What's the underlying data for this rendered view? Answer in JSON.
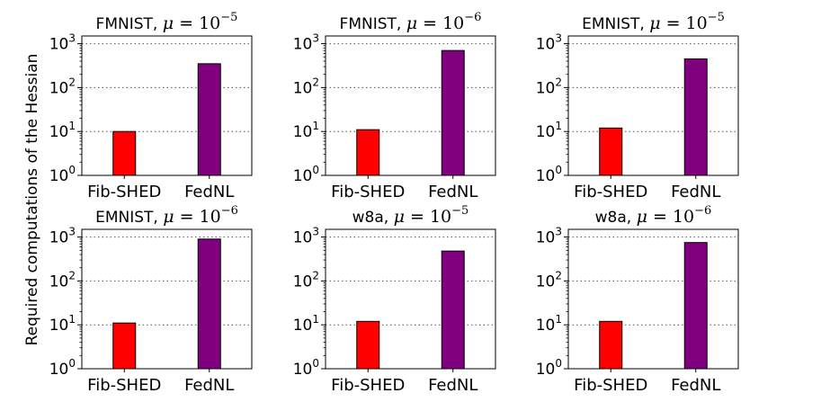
{
  "figure": {
    "ylabel": "Required computations of the Hessian"
  },
  "chart_data": [
    {
      "type": "bar",
      "title": "FMNIST, μ = 10^-5",
      "title_prefix": "FMNIST,",
      "mu_symbol": "μ",
      "mu_eq": "= 10",
      "exponent": "−5",
      "categories": [
        "Fib-SHED",
        "FedNL"
      ],
      "values": [
        10,
        350
      ],
      "colors": [
        "#ff0000",
        "#800080"
      ],
      "yscale": "log",
      "ylim": [
        1,
        1500
      ],
      "yticks": [
        {
          "base": "10",
          "exp": "0"
        },
        {
          "base": "10",
          "exp": "1"
        },
        {
          "base": "10",
          "exp": "2"
        },
        {
          "base": "10",
          "exp": "3"
        }
      ],
      "grid": "y-dotted"
    },
    {
      "type": "bar",
      "title": "FMNIST, μ = 10^-6",
      "title_prefix": "FMNIST,",
      "mu_symbol": "μ",
      "mu_eq": "= 10",
      "exponent": "−6",
      "categories": [
        "Fib-SHED",
        "FedNL"
      ],
      "values": [
        11,
        700
      ],
      "colors": [
        "#ff0000",
        "#800080"
      ],
      "yscale": "log",
      "ylim": [
        1,
        1500
      ],
      "yticks": [
        {
          "base": "10",
          "exp": "0"
        },
        {
          "base": "10",
          "exp": "1"
        },
        {
          "base": "10",
          "exp": "2"
        },
        {
          "base": "10",
          "exp": "3"
        }
      ],
      "grid": "y-dotted"
    },
    {
      "type": "bar",
      "title": "EMNIST, μ = 10^-5",
      "title_prefix": "EMNIST,",
      "mu_symbol": "μ",
      "mu_eq": "= 10",
      "exponent": "−5",
      "categories": [
        "Fib-SHED",
        "FedNL"
      ],
      "values": [
        12,
        450
      ],
      "colors": [
        "#ff0000",
        "#800080"
      ],
      "yscale": "log",
      "ylim": [
        1,
        1500
      ],
      "yticks": [
        {
          "base": "10",
          "exp": "0"
        },
        {
          "base": "10",
          "exp": "1"
        },
        {
          "base": "10",
          "exp": "2"
        },
        {
          "base": "10",
          "exp": "3"
        }
      ],
      "grid": "y-dotted"
    },
    {
      "type": "bar",
      "title": "EMNIST, μ = 10^-6",
      "title_prefix": "EMNIST,",
      "mu_symbol": "μ",
      "mu_eq": "= 10",
      "exponent": "−6",
      "categories": [
        "Fib-SHED",
        "FedNL"
      ],
      "values": [
        11,
        900
      ],
      "colors": [
        "#ff0000",
        "#800080"
      ],
      "yscale": "log",
      "ylim": [
        1,
        1500
      ],
      "yticks": [
        {
          "base": "10",
          "exp": "0"
        },
        {
          "base": "10",
          "exp": "1"
        },
        {
          "base": "10",
          "exp": "2"
        },
        {
          "base": "10",
          "exp": "3"
        }
      ],
      "grid": "y-dotted"
    },
    {
      "type": "bar",
      "title": "w8a, μ = 10^-5",
      "title_prefix": "w8a,",
      "mu_symbol": "μ",
      "mu_eq": "= 10",
      "exponent": "−5",
      "categories": [
        "Fib-SHED",
        "FedNL"
      ],
      "values": [
        12,
        480
      ],
      "colors": [
        "#ff0000",
        "#800080"
      ],
      "yscale": "log",
      "ylim": [
        1,
        1500
      ],
      "yticks": [
        {
          "base": "10",
          "exp": "0"
        },
        {
          "base": "10",
          "exp": "1"
        },
        {
          "base": "10",
          "exp": "2"
        },
        {
          "base": "10",
          "exp": "3"
        }
      ],
      "grid": "y-dotted"
    },
    {
      "type": "bar",
      "title": "w8a, μ = 10^-6",
      "title_prefix": "w8a,",
      "mu_symbol": "μ",
      "mu_eq": "= 10",
      "exponent": "−6",
      "categories": [
        "Fib-SHED",
        "FedNL"
      ],
      "values": [
        12,
        750
      ],
      "colors": [
        "#ff0000",
        "#800080"
      ],
      "yscale": "log",
      "ylim": [
        1,
        1500
      ],
      "yticks": [
        {
          "base": "10",
          "exp": "0"
        },
        {
          "base": "10",
          "exp": "1"
        },
        {
          "base": "10",
          "exp": "2"
        },
        {
          "base": "10",
          "exp": "3"
        }
      ],
      "grid": "y-dotted"
    }
  ]
}
